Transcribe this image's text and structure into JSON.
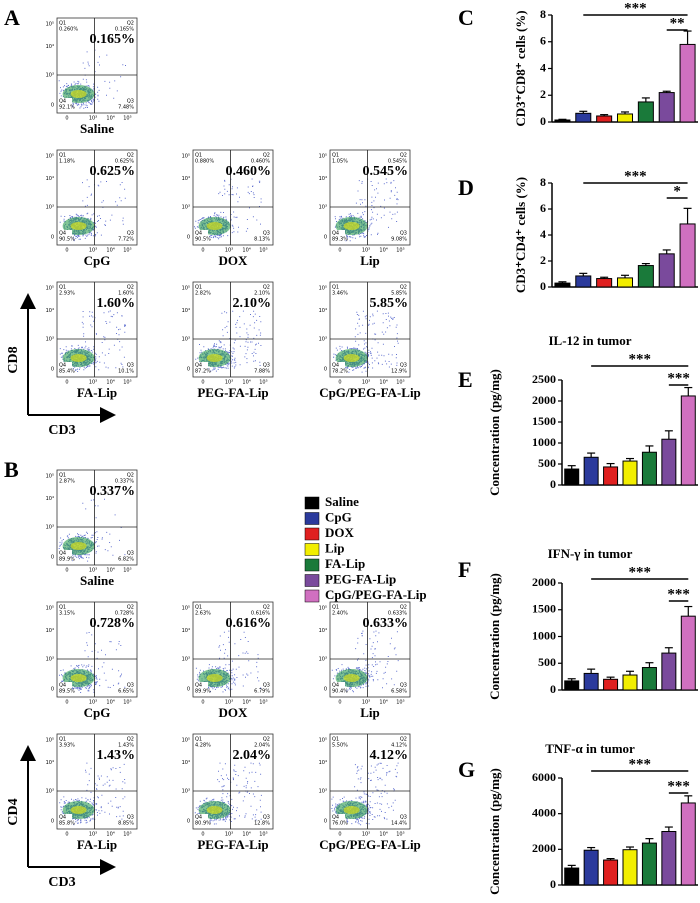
{
  "flow": {
    "axis_ticks": [
      "0",
      "10³",
      "10⁴",
      "10⁵"
    ],
    "panels": [
      {
        "label": "A",
        "y_axis": "CD8",
        "x_axis": "CD3",
        "plots": [
          {
            "name": "Saline",
            "percent": "0.165%",
            "quadrants": [
              {
                "label": "Q1",
                "value": "0.260%"
              },
              {
                "label": "Q2",
                "value": "0.165%"
              },
              {
                "label": "Q3",
                "value": "7.48%"
              },
              {
                "label": "Q4",
                "value": "92.1%"
              }
            ]
          },
          {
            "name": "CpG",
            "percent": "0.625%",
            "quadrants": [
              {
                "label": "Q1",
                "value": "1.18%"
              },
              {
                "label": "Q2",
                "value": "0.625%"
              },
              {
                "label": "Q3",
                "value": "7.72%"
              },
              {
                "label": "Q4",
                "value": "90.5%"
              }
            ]
          },
          {
            "name": "DOX",
            "percent": "0.460%",
            "quadrants": [
              {
                "label": "Q1",
                "value": "0.880%"
              },
              {
                "label": "Q2",
                "value": "0.460%"
              },
              {
                "label": "Q3",
                "value": "8.13%"
              },
              {
                "label": "Q4",
                "value": "90.5%"
              }
            ]
          },
          {
            "name": "Lip",
            "percent": "0.545%",
            "quadrants": [
              {
                "label": "Q1",
                "value": "1.05%"
              },
              {
                "label": "Q2",
                "value": "0.545%"
              },
              {
                "label": "Q3",
                "value": "9.08%"
              },
              {
                "label": "Q4",
                "value": "89.3%"
              }
            ]
          },
          {
            "name": "FA-Lip",
            "percent": "1.60%",
            "quadrants": [
              {
                "label": "Q1",
                "value": "2.93%"
              },
              {
                "label": "Q2",
                "value": "1.60%"
              },
              {
                "label": "Q3",
                "value": "10.1%"
              },
              {
                "label": "Q4",
                "value": "85.4%"
              }
            ]
          },
          {
            "name": "PEG-FA-Lip",
            "percent": "2.10%",
            "quadrants": [
              {
                "label": "Q1",
                "value": "2.82%"
              },
              {
                "label": "Q2",
                "value": "2.10%"
              },
              {
                "label": "Q3",
                "value": "7.88%"
              },
              {
                "label": "Q4",
                "value": "87.2%"
              }
            ]
          },
          {
            "name": "CpG/PEG-FA-Lip",
            "percent": "5.85%",
            "quadrants": [
              {
                "label": "Q1",
                "value": "3.46%"
              },
              {
                "label": "Q2",
                "value": "5.85%"
              },
              {
                "label": "Q3",
                "value": "12.9%"
              },
              {
                "label": "Q4",
                "value": "78.2%"
              }
            ]
          }
        ]
      },
      {
        "label": "B",
        "y_axis": "CD4",
        "x_axis": "CD3",
        "plots": [
          {
            "name": "Saline",
            "percent": "0.337%",
            "quadrants": [
              {
                "label": "Q1",
                "value": "2.87%"
              },
              {
                "label": "Q2",
                "value": "0.337%"
              },
              {
                "label": "Q3",
                "value": "6.82%"
              },
              {
                "label": "Q4",
                "value": "89.9%"
              }
            ]
          },
          {
            "name": "CpG",
            "percent": "0.728%",
            "quadrants": [
              {
                "label": "Q1",
                "value": "3.15%"
              },
              {
                "label": "Q2",
                "value": "0.728%"
              },
              {
                "label": "Q3",
                "value": "6.65%"
              },
              {
                "label": "Q4",
                "value": "89.5%"
              }
            ]
          },
          {
            "name": "DOX",
            "percent": "0.616%",
            "quadrants": [
              {
                "label": "Q1",
                "value": "2.63%"
              },
              {
                "label": "Q2",
                "value": "0.616%"
              },
              {
                "label": "Q3",
                "value": "6.79%"
              },
              {
                "label": "Q4",
                "value": "89.9%"
              }
            ]
          },
          {
            "name": "Lip",
            "percent": "0.633%",
            "quadrants": [
              {
                "label": "Q1",
                "value": "2.40%"
              },
              {
                "label": "Q2",
                "value": "0.633%"
              },
              {
                "label": "Q3",
                "value": "6.58%"
              },
              {
                "label": "Q4",
                "value": "90.4%"
              }
            ]
          },
          {
            "name": "FA-Lip",
            "percent": "1.43%",
            "quadrants": [
              {
                "label": "Q1",
                "value": "3.93%"
              },
              {
                "label": "Q2",
                "value": "1.43%"
              },
              {
                "label": "Q3",
                "value": "8.85%"
              },
              {
                "label": "Q4",
                "value": "85.8%"
              }
            ]
          },
          {
            "name": "PEG-FA-Lip",
            "percent": "2.04%",
            "quadrants": [
              {
                "label": "Q1",
                "value": "4.28%"
              },
              {
                "label": "Q2",
                "value": "2.04%"
              },
              {
                "label": "Q3",
                "value": "12.8%"
              },
              {
                "label": "Q4",
                "value": "80.9%"
              }
            ]
          },
          {
            "name": "CpG/PEG-FA-Lip",
            "percent": "4.12%",
            "quadrants": [
              {
                "label": "Q1",
                "value": "5.50%"
              },
              {
                "label": "Q2",
                "value": "4.12%"
              },
              {
                "label": "Q3",
                "value": "14.4%"
              },
              {
                "label": "Q4",
                "value": "76.0%"
              }
            ]
          }
        ]
      }
    ]
  },
  "legend": {
    "labels": [
      "Saline",
      "CpG",
      "DOX",
      "Lip",
      "FA-Lip",
      "PEG-FA-Lip",
      "CpG/PEG-FA-Lip"
    ],
    "colors": [
      "#000000",
      "#2b3a9c",
      "#e02020",
      "#f2ee00",
      "#1a7a3a",
      "#7a4a9c",
      "#d070c0"
    ]
  },
  "chart_data": [
    {
      "type": "bar",
      "label": "C",
      "ylabel": "CD3⁺CD8⁺ cells (%)",
      "categories": [
        null,
        null,
        null,
        null,
        null,
        null,
        null
      ],
      "values": [
        0.15,
        0.65,
        0.45,
        0.6,
        1.5,
        2.2,
        5.8
      ],
      "errors": [
        0.05,
        0.15,
        0.1,
        0.15,
        0.3,
        0.1,
        1.0
      ],
      "colors": [
        "#000000",
        "#2b3a9c",
        "#e02020",
        "#f2ee00",
        "#1a7a3a",
        "#7a4a9c",
        "#d070c0"
      ],
      "ylim": [
        0,
        8
      ],
      "yticks": [
        0,
        2,
        4,
        6,
        8
      ],
      "annotations": [
        "***",
        "**"
      ]
    },
    {
      "type": "bar",
      "label": "D",
      "ylabel": "CD3⁺CD4⁺ cells (%)",
      "categories": [
        null,
        null,
        null,
        null,
        null,
        null,
        null
      ],
      "values": [
        0.3,
        0.85,
        0.65,
        0.7,
        1.65,
        2.55,
        4.85
      ],
      "errors": [
        0.1,
        0.2,
        0.1,
        0.2,
        0.15,
        0.3,
        1.2
      ],
      "colors": [
        "#000000",
        "#2b3a9c",
        "#e02020",
        "#f2ee00",
        "#1a7a3a",
        "#7a4a9c",
        "#d070c0"
      ],
      "ylim": [
        0,
        8
      ],
      "yticks": [
        0,
        2,
        4,
        6,
        8
      ],
      "annotations": [
        "***",
        "*"
      ]
    },
    {
      "type": "bar",
      "label": "E",
      "title": "IL-12 in tumor",
      "ylabel": "Concentration (pg/mg)",
      "categories": [
        null,
        null,
        null,
        null,
        null,
        null,
        null
      ],
      "values": [
        380,
        660,
        430,
        570,
        780,
        1090,
        2120
      ],
      "errors": [
        80,
        100,
        80,
        60,
        150,
        200,
        200
      ],
      "colors": [
        "#000000",
        "#2b3a9c",
        "#e02020",
        "#f2ee00",
        "#1a7a3a",
        "#7a4a9c",
        "#d070c0"
      ],
      "ylim": [
        0,
        2500
      ],
      "yticks": [
        0,
        500,
        1000,
        1500,
        2000,
        2500
      ],
      "annotations": [
        "***",
        "***"
      ]
    },
    {
      "type": "bar",
      "label": "F",
      "title": "IFN-γ in tumor",
      "ylabel": "Concentration (pg/mg)",
      "categories": [
        null,
        null,
        null,
        null,
        null,
        null,
        null
      ],
      "values": [
        170,
        310,
        200,
        280,
        420,
        690,
        1380
      ],
      "errors": [
        40,
        80,
        40,
        70,
        90,
        100,
        180
      ],
      "colors": [
        "#000000",
        "#2b3a9c",
        "#e02020",
        "#f2ee00",
        "#1a7a3a",
        "#7a4a9c",
        "#d070c0"
      ],
      "ylim": [
        0,
        2000
      ],
      "yticks": [
        0,
        500,
        1000,
        1500,
        2000
      ],
      "annotations": [
        "***",
        "***"
      ]
    },
    {
      "type": "bar",
      "label": "G",
      "title": "TNF-α in tumor",
      "ylabel": "Concentration (pg/mg)",
      "categories": [
        null,
        null,
        null,
        null,
        null,
        null,
        null
      ],
      "values": [
        950,
        1950,
        1400,
        1980,
        2350,
        3000,
        4600
      ],
      "errors": [
        150,
        150,
        80,
        150,
        250,
        250,
        400
      ],
      "colors": [
        "#000000",
        "#2b3a9c",
        "#e02020",
        "#f2ee00",
        "#1a7a3a",
        "#7a4a9c",
        "#d070c0"
      ],
      "ylim": [
        0,
        6000
      ],
      "yticks": [
        0,
        2000,
        4000,
        6000
      ],
      "annotations": [
        "***",
        "***"
      ]
    }
  ]
}
